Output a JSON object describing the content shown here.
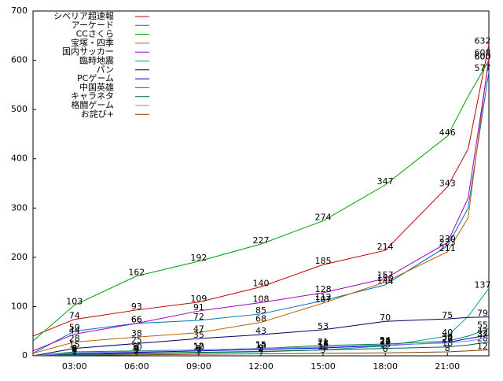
{
  "chart_data": {
    "type": "line",
    "xlim": [
      1,
      23
    ],
    "xticks": [
      {
        "value": 3,
        "label": "03:00"
      },
      {
        "value": 6,
        "label": "06:00"
      },
      {
        "value": 9,
        "label": "09:00"
      },
      {
        "value": 12,
        "label": "12:00"
      },
      {
        "value": 15,
        "label": "15:00"
      },
      {
        "value": 18,
        "label": "18:00"
      },
      {
        "value": 21,
        "label": "21:00"
      }
    ],
    "ylim": [
      0,
      700
    ],
    "yticks": [
      0,
      100,
      200,
      300,
      400,
      500,
      600,
      700
    ],
    "x": [
      1,
      3,
      6,
      9,
      12,
      15,
      18,
      21,
      22,
      23
    ],
    "legend": "upper-left",
    "series": [
      {
        "name": "シベリア超速報",
        "color": "#c00000",
        "values": [
          40,
          74,
          93,
          109,
          140,
          185,
          214,
          343,
          420,
          632
        ]
      },
      {
        "name": "アーケード",
        "color": "#0070c0",
        "values": [
          5,
          50,
          66,
          72,
          85,
          112,
          144,
          223,
          300,
          577
        ]
      },
      {
        "name": "CCさくら",
        "color": "#00a000",
        "values": [
          30,
          103,
          162,
          192,
          227,
          274,
          347,
          446,
          527,
          600
        ]
      },
      {
        "name": "宝塚・四季",
        "color": "#c06000",
        "values": [
          5,
          28,
          38,
          47,
          68,
          107,
          150,
          211,
          280,
          608
        ]
      },
      {
        "name": "国内サッカー",
        "color": "#a000c0",
        "values": [
          10,
          44,
          66,
          91,
          108,
          128,
          157,
          230,
          320,
          600
        ]
      },
      {
        "name": "臨時地震",
        "color": "#00a0a0",
        "values": [
          0,
          2,
          4,
          6,
          8,
          12,
          20,
          40,
          80,
          137
        ]
      },
      {
        "name": "パン",
        "color": "#000060",
        "values": [
          0,
          15,
          25,
          35,
          43,
          53,
          70,
          75,
          78,
          79
        ]
      },
      {
        "name": "PCゲーム",
        "color": "#0000c0",
        "values": [
          0,
          4,
          7,
          10,
          13,
          16,
          21,
          27,
          35,
          42
        ]
      },
      {
        "name": "中国英雄",
        "color": "#008040",
        "values": [
          0,
          8,
          10,
          12,
          15,
          21,
          24,
          30,
          40,
          55
        ]
      },
      {
        "name": "キャラネタ",
        "color": "#006040",
        "values": [
          0,
          3,
          5,
          7,
          9,
          12,
          15,
          18,
          22,
          28
        ]
      },
      {
        "name": "格闘ゲーム",
        "color": "#8080ff",
        "values": [
          0,
          6,
          9,
          12,
          15,
          18,
          22,
          26,
          30,
          37
        ]
      },
      {
        "name": "お詫び+",
        "color": "#804000",
        "values": [
          0,
          1,
          2,
          3,
          4,
          5,
          6,
          8,
          10,
          12
        ]
      }
    ]
  }
}
